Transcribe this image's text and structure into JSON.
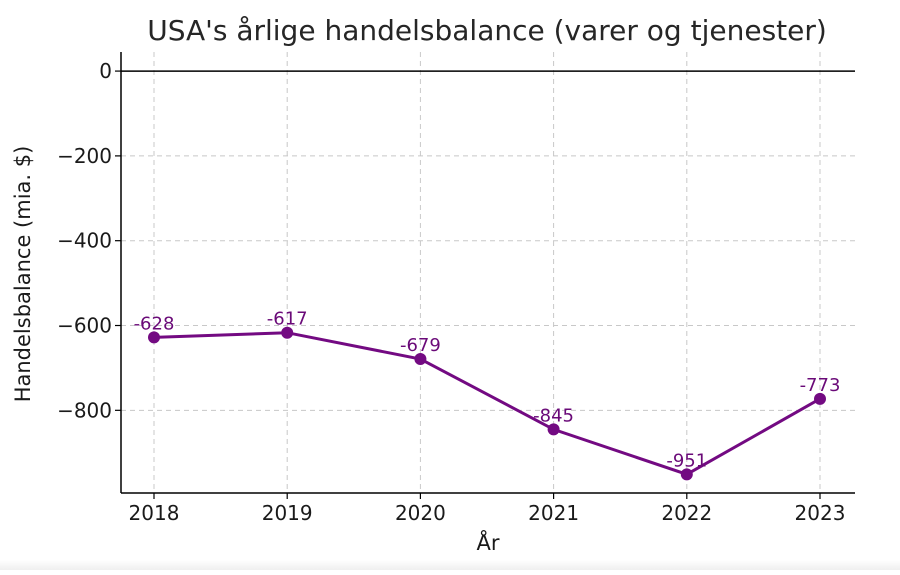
{
  "chart_data": {
    "type": "line",
    "title": "USA's årlige handelsbalance (varer og tjenester)",
    "xlabel": "År",
    "ylabel": "Handelsbalance (mia. $)",
    "categories": [
      "2018",
      "2019",
      "2020",
      "2021",
      "2022",
      "2023"
    ],
    "series": [
      {
        "values": [
          -628,
          -617,
          -679,
          -845,
          -951,
          -773
        ],
        "data_labels": [
          "-628",
          "-617",
          "-679",
          "-845",
          "-951",
          "-773"
        ],
        "color": "#730a82"
      }
    ],
    "y_ticks": [
      0,
      -200,
      -400,
      -600,
      -800
    ],
    "y_tick_labels": [
      "0",
      "−200",
      "−400",
      "−600",
      "−800"
    ],
    "ylim": [
      -995,
      45
    ],
    "grid": true,
    "reference_line": 0
  }
}
